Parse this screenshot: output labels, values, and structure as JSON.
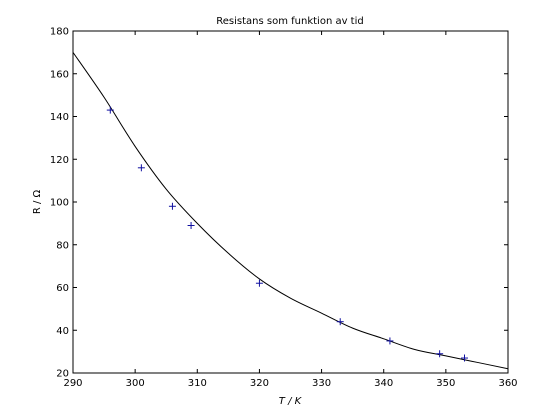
{
  "chart_data": {
    "type": "scatter",
    "title": "Resistans som funktion av tid",
    "xlabel": "T / K",
    "ylabel": "R / Ω",
    "xlim": [
      290,
      360
    ],
    "ylim": [
      20,
      180
    ],
    "xticks": [
      290,
      300,
      310,
      320,
      330,
      340,
      350,
      360
    ],
    "yticks": [
      20,
      40,
      60,
      80,
      100,
      120,
      140,
      160,
      180
    ],
    "grid": false,
    "series": [
      {
        "kind": "markers",
        "marker": "+",
        "color": "#1010a0",
        "points": [
          {
            "x": 296,
            "y": 143
          },
          {
            "x": 301,
            "y": 116
          },
          {
            "x": 306,
            "y": 98
          },
          {
            "x": 309,
            "y": 89
          },
          {
            "x": 320,
            "y": 62
          },
          {
            "x": 333,
            "y": 44
          },
          {
            "x": 341,
            "y": 35
          },
          {
            "x": 349,
            "y": 29
          },
          {
            "x": 353,
            "y": 27
          }
        ]
      },
      {
        "kind": "line",
        "color": "#000000",
        "points": [
          {
            "x": 290,
            "y": 170
          },
          {
            "x": 295,
            "y": 149
          },
          {
            "x": 300,
            "y": 126
          },
          {
            "x": 305,
            "y": 106
          },
          {
            "x": 310,
            "y": 90
          },
          {
            "x": 315,
            "y": 76
          },
          {
            "x": 320,
            "y": 64
          },
          {
            "x": 325,
            "y": 55
          },
          {
            "x": 330,
            "y": 48
          },
          {
            "x": 335,
            "y": 41
          },
          {
            "x": 340,
            "y": 36
          },
          {
            "x": 345,
            "y": 31
          },
          {
            "x": 350,
            "y": 28
          },
          {
            "x": 355,
            "y": 25
          },
          {
            "x": 360,
            "y": 22
          }
        ]
      }
    ]
  }
}
